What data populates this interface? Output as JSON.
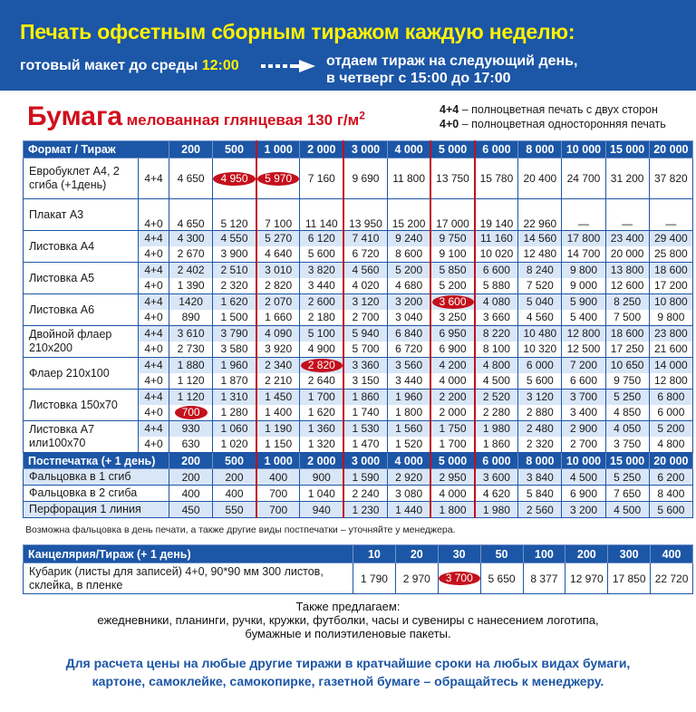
{
  "header": {
    "title": "Печать офсетным сборным тиражом каждую неделю:",
    "ready_prefix": "готовый макет до среды ",
    "ready_time": "12:00",
    "ship_line1": "отдаем тираж на следующий день,",
    "ship_line2": "в четверг с 15:00 до 17:00"
  },
  "paper": {
    "name": "Бумага",
    "desc": "мелованная глянцевая 130 г/м",
    "sup": "2"
  },
  "legend": [
    {
      "code": "4+4",
      "text": " – полноцветная печать с двух сторон"
    },
    {
      "code": "4+0",
      "text": " – полноцветная односторонняя печать"
    }
  ],
  "main_table": {
    "header_label": "Формат / Тираж",
    "quantities": [
      "200",
      "500",
      "1 000",
      "2 000",
      "3 000",
      "4 000",
      "5 000",
      "6 000",
      "8 000",
      "10 000",
      "15 000",
      "20 000"
    ],
    "products": [
      {
        "name": "Евробуклет А4, 2 сгиба (+1день)",
        "rows": [
          {
            "code": "4+4",
            "prices": [
              "4 650",
              "4 950",
              "5 970",
              "7 160",
              "9 690",
              "11 800",
              "13 750",
              "15 780",
              "20 400",
              "24 700",
              "31 200",
              "37 820"
            ]
          }
        ]
      },
      {
        "name": "Плакат А3",
        "rows": [
          {
            "code": "4+0",
            "prices": [
              "4 650",
              "5 120",
              "7 100",
              "11 140",
              "13 950",
              "15 200",
              "17 000",
              "19 140",
              "22 960",
              "—",
              "—",
              "—"
            ]
          }
        ]
      },
      {
        "name": "Листовка А4",
        "rows": [
          {
            "code": "4+4",
            "prices": [
              "4 300",
              "4 550",
              "5 270",
              "6 120",
              "7 410",
              "9 240",
              "9 750",
              "11 160",
              "14 560",
              "17 800",
              "23 400",
              "29 400"
            ]
          },
          {
            "code": "4+0",
            "prices": [
              "2 670",
              "3 900",
              "4 640",
              "5 600",
              "6 720",
              "8 600",
              "9 100",
              "10 020",
              "12 480",
              "14 700",
              "20 000",
              "25 800"
            ]
          }
        ]
      },
      {
        "name": "Листовка А5",
        "rows": [
          {
            "code": "4+4",
            "prices": [
              "2 402",
              "2 510",
              "3 010",
              "3 820",
              "4 560",
              "5 200",
              "5 850",
              "6 600",
              "8 240",
              "9 800",
              "13 800",
              "18 600"
            ]
          },
          {
            "code": "4+0",
            "prices": [
              "1 390",
              "2 320",
              "2 820",
              "3 440",
              "4 020",
              "4 680",
              "5 200",
              "5 880",
              "7 520",
              "9 000",
              "12 600",
              "17 200"
            ]
          }
        ]
      },
      {
        "name": "Листовка А6",
        "rows": [
          {
            "code": "4+4",
            "prices": [
              "1420",
              "1 620",
              "2 070",
              "2 600",
              "3 120",
              "3 200",
              "3 600",
              "4 080",
              "5 040",
              "5 900",
              "8 250",
              "10 800"
            ]
          },
          {
            "code": "4+0",
            "prices": [
              "890",
              "1 500",
              "1 660",
              "2 180",
              "2 700",
              "3 040",
              "3 250",
              "3 660",
              "4 560",
              "5 400",
              "7 500",
              "9 800"
            ]
          }
        ]
      },
      {
        "name": "Двойной флаер 210х200",
        "rows": [
          {
            "code": "4+4",
            "prices": [
              "3 610",
              "3 790",
              "4 090",
              "5 100",
              "5 940",
              "6 840",
              "6 950",
              "8 220",
              "10 480",
              "12 800",
              "18 600",
              "23 800"
            ]
          },
          {
            "code": "4+0",
            "prices": [
              "2 730",
              "3 580",
              "3 920",
              "4 900",
              "5 700",
              "6 720",
              "6 900",
              "8 100",
              "10 320",
              "12 500",
              "17 250",
              "21 600"
            ]
          }
        ]
      },
      {
        "name": "Флаер 210х100",
        "rows": [
          {
            "code": "4+4",
            "prices": [
              "1 880",
              "1 960",
              "2 340",
              "2 820",
              "3 360",
              "3 560",
              "4 200",
              "4 800",
              "6 000",
              "7 200",
              "10 650",
              "14 000"
            ]
          },
          {
            "code": "4+0",
            "prices": [
              "1 120",
              "1 870",
              "2 210",
              "2 640",
              "3 150",
              "3 440",
              "4 000",
              "4 500",
              "5 600",
              "6 600",
              "9 750",
              "12 800"
            ]
          }
        ]
      },
      {
        "name": "Листовка 150х70",
        "rows": [
          {
            "code": "4+4",
            "prices": [
              "1 120",
              "1 310",
              "1 450",
              "1 700",
              "1 860",
              "1 960",
              "2 200",
              "2 520",
              "3 120",
              "3 700",
              "5 250",
              "6 800"
            ]
          },
          {
            "code": "4+0",
            "prices": [
              "700",
              "1 280",
              "1 400",
              "1 620",
              "1 740",
              "1 800",
              "2 000",
              "2 280",
              "2 880",
              "3 400",
              "4 850",
              "6 000"
            ]
          }
        ]
      },
      {
        "name": "Листовка А7 или100х70",
        "rows": [
          {
            "code": "4+4",
            "prices": [
              "930",
              "1 060",
              "1 190",
              "1 360",
              "1 530",
              "1 560",
              "1 750",
              "1 980",
              "2 480",
              "2 900",
              "4 050",
              "5 200"
            ]
          },
          {
            "code": "4+0",
            "prices": [
              "630",
              "1 020",
              "1 150",
              "1 320",
              "1 470",
              "1 520",
              "1 700",
              "1 860",
              "2 320",
              "2 700",
              "3 750",
              "4 800"
            ]
          }
        ]
      }
    ],
    "post_header": "Постпечатка (+ 1 день)",
    "post_rows": [
      {
        "name": "Фальцовка в 1 сгиб",
        "prices": [
          "200",
          "200",
          "400",
          "900",
          "1 590",
          "2 920",
          "2 950",
          "3 600",
          "3 840",
          "4 500",
          "5 250",
          "6 200"
        ]
      },
      {
        "name": "Фальцовка в 2 сгиба",
        "prices": [
          "400",
          "400",
          "700",
          "1 040",
          "2 240",
          "3 080",
          "4 000",
          "4 620",
          "5 840",
          "6 900",
          "7 650",
          "8 400"
        ]
      },
      {
        "name": "Перфорация 1 линия",
        "prices": [
          "450",
          "550",
          "700",
          "940",
          "1 230",
          "1 440",
          "1 800",
          "1 980",
          "2 560",
          "3 200",
          "4 500",
          "5 600"
        ]
      }
    ]
  },
  "note": "Возможна фальцовка в день печати, а также другие виды постпечатки – уточняйте у менеджера.",
  "stationery": {
    "header": "Канцелярия/Тираж (+ 1 день)",
    "quantities": [
      "10",
      "20",
      "30",
      "50",
      "100",
      "200",
      "300",
      "400"
    ],
    "item": "Кубарик (листы для записей) 4+0, 90*90 мм 300 листов, склейка, в пленке",
    "prices": [
      "1 790",
      "2 970",
      "3 700",
      "5 650",
      "8 377",
      "12 970",
      "17 850",
      "22 720"
    ]
  },
  "also": {
    "title": "Также предлагаем:",
    "line1": "ежедневники, планинги, ручки, кружки, футболки, часы и сувениры с нанесением логотипа,",
    "line2": "бумажные и полиэтиленовые пакеты."
  },
  "footer": {
    "line1": "Для расчета цены на любые другие тиражи в кратчайшие сроки на любых видах бумаги,",
    "line2": "картоне, самоклейке, самокопирке, газетной бумаге – обращайтесь к менеджеру."
  },
  "highlighted": [
    {
      "product": 0,
      "row": 0,
      "col": 1
    },
    {
      "product": 0,
      "row": 0,
      "col": 2
    },
    {
      "product": 4,
      "row": 0,
      "col": 6
    },
    {
      "product": 6,
      "row": 0,
      "col": 3
    },
    {
      "product": 7,
      "row": 1,
      "col": 0
    }
  ],
  "colors": {
    "brand_blue": "#1c56a6",
    "accent_yellow": "#fff200",
    "highlight_red": "#c4101c",
    "paper_red": "#d0101e"
  }
}
